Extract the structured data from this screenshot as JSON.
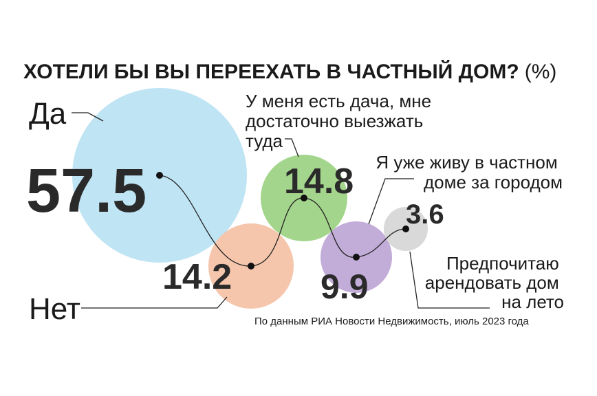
{
  "chart_data": {
    "type": "bubble",
    "title": "ХОТЕЛИ БЫ ВЫ ПЕРЕЕХАТЬ В ЧАСТНЫЙ ДОМ?",
    "unit": "(%)",
    "series": [
      {
        "label": "Да",
        "value": 57.5,
        "value_text": "57.5",
        "color": "#bfe4f4"
      },
      {
        "label": "Нет",
        "value": 14.2,
        "value_text": "14.2",
        "color": "#f5c6ac"
      },
      {
        "label_lines": [
          "У меня есть дача, мне",
          "достаточно выезжать",
          "туда"
        ],
        "value": 14.8,
        "value_text": "14.8",
        "color": "#a4d58c"
      },
      {
        "label_lines": [
          "Я уже живу в частном",
          "доме за городом"
        ],
        "value": 9.9,
        "value_text": "9.9",
        "color": "#c2acd8"
      },
      {
        "label_lines": [
          "Предпочитаю",
          "арендовать дом",
          "на лето"
        ],
        "value": 3.6,
        "value_text": "3.6",
        "color": "#d9d9d9"
      }
    ],
    "source": "По данным РИА Новости Недвижимость, июль 2023 года"
  }
}
